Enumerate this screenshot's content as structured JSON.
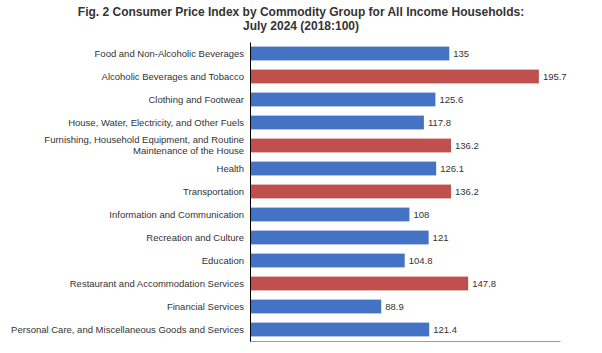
{
  "chart_data": {
    "type": "bar",
    "orientation": "horizontal",
    "title": "Fig. 2 Consumer Price Index by Commodity Group for All Income Households:\nJuly 2024 (2018:100)",
    "categories": [
      "Food and Non-Alcoholic Beverages",
      "Alcoholic Beverages and Tobacco",
      "Clothing and Footwear",
      "House, Water, Electricity, and Other Fuels",
      "Furnishing, Household Equipment, and Routine Maintenance of the House",
      "Health",
      "Transportation",
      "Information and Communication",
      "Recreation and Culture",
      "Education",
      "Restaurant and Accommodation Services",
      "Financial Services",
      "Personal Care, and Miscellaneous Goods and Services"
    ],
    "values": [
      135,
      195.7,
      125.6,
      117.8,
      136.2,
      126.1,
      136.2,
      108,
      121,
      104.8,
      147.8,
      88.9,
      121.4
    ],
    "colors": [
      "#4472C4",
      "#C0504D",
      "#4472C4",
      "#4472C4",
      "#C0504D",
      "#4472C4",
      "#C0504D",
      "#4472C4",
      "#4472C4",
      "#4472C4",
      "#C0504D",
      "#4472C4",
      "#4472C4"
    ],
    "xlim": [
      0,
      210
    ],
    "data_labels": true,
    "tick_labels": "y",
    "grid": false
  }
}
